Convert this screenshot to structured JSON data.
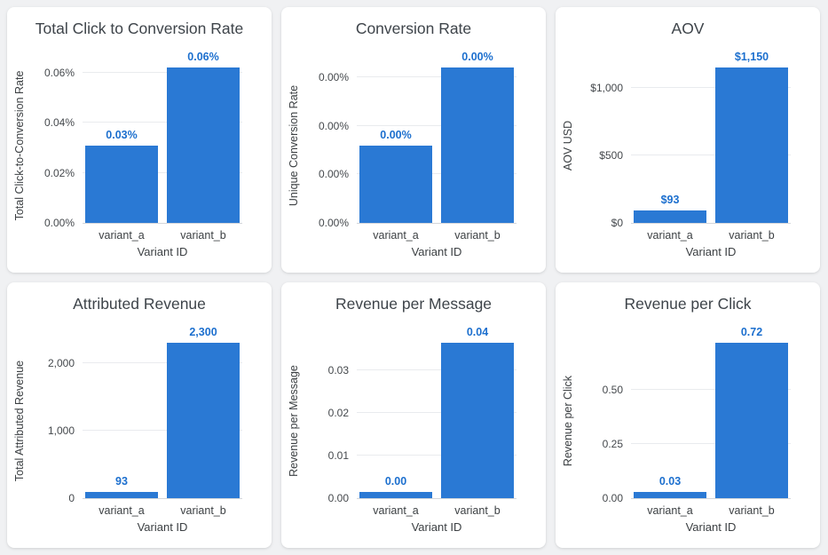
{
  "theme": {
    "page_background": "#f0f1f3",
    "card_background": "#ffffff",
    "bar_color": "#2a79d4",
    "value_label_color": "#1c6fce",
    "title_color": "#3e444a",
    "tick_color": "#44484c",
    "gridline_color": "#e9ebee"
  },
  "chart_data": [
    {
      "type": "bar",
      "title": "Total Click to Conversion Rate",
      "xlabel": "Variant ID",
      "ylabel": "Total Click-to-Conversion Rate",
      "categories": [
        "variant_a",
        "variant_b"
      ],
      "values": [
        0.031,
        0.062
      ],
      "value_labels": [
        "0.03%",
        "0.06%"
      ],
      "ymax": 0.062,
      "ticks": [
        {
          "value": 0,
          "label": "0.00%"
        },
        {
          "value": 0.02,
          "label": "0.02%"
        },
        {
          "value": 0.04,
          "label": "0.04%"
        },
        {
          "value": 0.06,
          "label": "0.06%"
        }
      ],
      "legend": "none",
      "grid": true
    },
    {
      "type": "bar",
      "title": "Conversion Rate",
      "xlabel": "Variant ID",
      "ylabel": "Unique Conversion Rate",
      "categories": [
        "variant_a",
        "variant_b"
      ],
      "values": [
        0.0016,
        0.0032
      ],
      "value_labels": [
        "0.00%",
        "0.00%"
      ],
      "ymax": 0.0032,
      "ticks": [
        {
          "value": 0,
          "label": "0.00%"
        },
        {
          "value": 0.001,
          "label": "0.00%"
        },
        {
          "value": 0.002,
          "label": "0.00%"
        },
        {
          "value": 0.003,
          "label": "0.00%"
        }
      ],
      "legend": "none",
      "grid": true
    },
    {
      "type": "bar",
      "title": "AOV",
      "xlabel": "Variant ID",
      "ylabel": "AOV USD",
      "categories": [
        "variant_a",
        "variant_b"
      ],
      "values": [
        93,
        1150
      ],
      "value_labels": [
        "$93",
        "$1,150"
      ],
      "ymax": 1150,
      "ticks": [
        {
          "value": 0,
          "label": "$0"
        },
        {
          "value": 500,
          "label": "$500"
        },
        {
          "value": 1000,
          "label": "$1,000"
        }
      ],
      "legend": "none",
      "grid": true
    },
    {
      "type": "bar",
      "title": "Attributed Revenue",
      "xlabel": "Variant ID",
      "ylabel": "Total Attributed Revenue",
      "categories": [
        "variant_a",
        "variant_b"
      ],
      "values": [
        93,
        2300
      ],
      "value_labels": [
        "93",
        "2,300"
      ],
      "ymax": 2300,
      "ticks": [
        {
          "value": 0,
          "label": "0"
        },
        {
          "value": 1000,
          "label": "1,000"
        },
        {
          "value": 2000,
          "label": "2,000"
        }
      ],
      "legend": "none",
      "grid": true
    },
    {
      "type": "bar",
      "title": "Revenue per Message",
      "xlabel": "Variant ID",
      "ylabel": "Revenue per Message",
      "categories": [
        "variant_a",
        "variant_b"
      ],
      "values": [
        0.0015,
        0.0365
      ],
      "value_labels": [
        "0.00",
        "0.04"
      ],
      "ymax": 0.0365,
      "ticks": [
        {
          "value": 0,
          "label": "0.00"
        },
        {
          "value": 0.01,
          "label": "0.01"
        },
        {
          "value": 0.02,
          "label": "0.02"
        },
        {
          "value": 0.03,
          "label": "0.03"
        }
      ],
      "legend": "none",
      "grid": true
    },
    {
      "type": "bar",
      "title": "Revenue per Click",
      "xlabel": "Variant ID",
      "ylabel": "Revenue per Click",
      "categories": [
        "variant_a",
        "variant_b"
      ],
      "values": [
        0.03,
        0.72
      ],
      "value_labels": [
        "0.03",
        "0.72"
      ],
      "ymax": 0.72,
      "ticks": [
        {
          "value": 0,
          "label": "0.00"
        },
        {
          "value": 0.25,
          "label": "0.25"
        },
        {
          "value": 0.5,
          "label": "0.50"
        }
      ],
      "legend": "none",
      "grid": true
    }
  ]
}
